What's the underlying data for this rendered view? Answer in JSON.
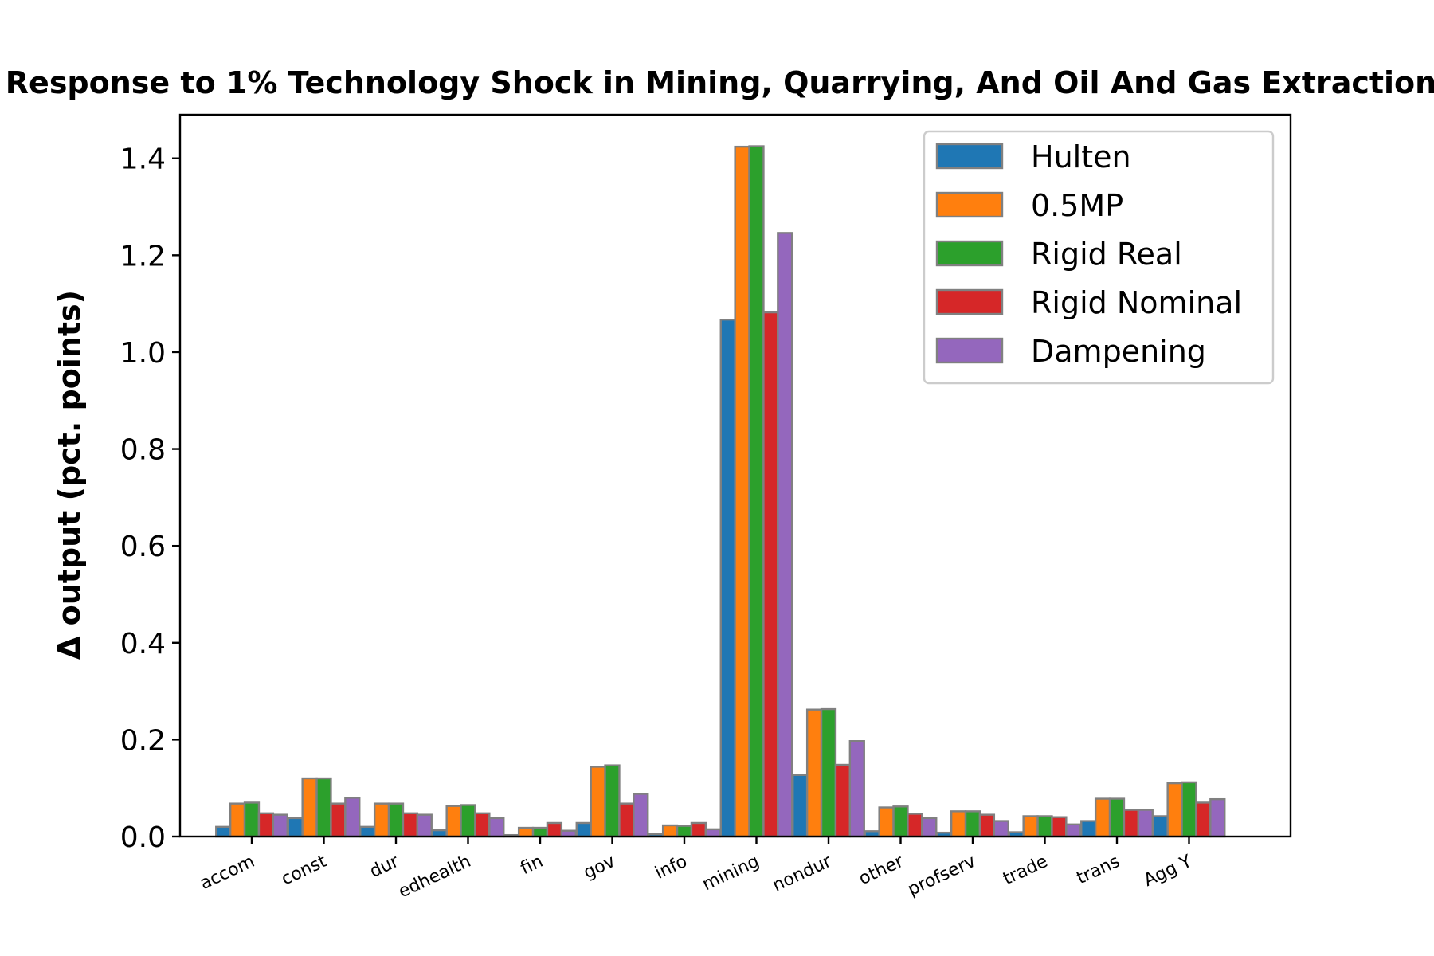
{
  "chart_data": {
    "type": "bar",
    "title": "Response to 1% Technology Shock in Mining, Quarrying, And Oil And Gas Extraction",
    "xlabel": "",
    "ylabel": "Δ output (pct. points)",
    "ylim": [
      0,
      1.49
    ],
    "yticks": [
      "0.0",
      "0.2",
      "0.4",
      "0.6",
      "0.8",
      "1.0",
      "1.2",
      "1.4"
    ],
    "legend_position": "top-right",
    "grid": false,
    "categories": [
      "accom",
      "const",
      "dur",
      "edhealth",
      "fin",
      "gov",
      "info",
      "mining",
      "nondur",
      "other",
      "profserv",
      "trade",
      "trans",
      "Agg Y"
    ],
    "series": [
      {
        "name": "Hulten",
        "color": "#1f77b4",
        "values": [
          0.02,
          0.038,
          0.02,
          0.013,
          0.003,
          0.028,
          0.005,
          1.067,
          0.127,
          0.011,
          0.008,
          0.009,
          0.032,
          0.042
        ]
      },
      {
        "name": "0.5MP",
        "color": "#ff7f0e",
        "values": [
          0.068,
          0.12,
          0.068,
          0.063,
          0.018,
          0.144,
          0.023,
          1.424,
          0.262,
          0.06,
          0.052,
          0.042,
          0.078,
          0.11
        ]
      },
      {
        "name": "Rigid Real",
        "color": "#2ca02c",
        "values": [
          0.07,
          0.12,
          0.068,
          0.065,
          0.018,
          0.147,
          0.022,
          1.425,
          0.263,
          0.062,
          0.052,
          0.042,
          0.078,
          0.112
        ]
      },
      {
        "name": "Rigid Nominal",
        "color": "#d62728",
        "values": [
          0.048,
          0.068,
          0.048,
          0.048,
          0.028,
          0.068,
          0.028,
          1.082,
          0.148,
          0.047,
          0.045,
          0.04,
          0.055,
          0.07
        ]
      },
      {
        "name": "Dampening",
        "color": "#9467bd",
        "values": [
          0.045,
          0.08,
          0.045,
          0.038,
          0.012,
          0.088,
          0.015,
          1.246,
          0.197,
          0.038,
          0.032,
          0.025,
          0.055,
          0.077
        ]
      }
    ],
    "bar_edge_color": "#808080"
  }
}
